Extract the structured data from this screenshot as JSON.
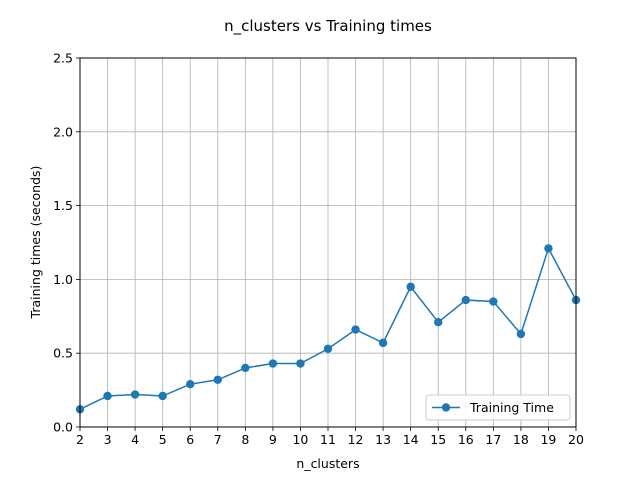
{
  "chart_data": {
    "type": "line",
    "title": "n_clusters vs Training times",
    "xlabel": "n_clusters",
    "ylabel": "Training times (seconds)",
    "xlim": [
      2,
      20
    ],
    "ylim": [
      0,
      2.5
    ],
    "x_ticks": [
      2,
      3,
      4,
      5,
      6,
      7,
      8,
      9,
      10,
      11,
      12,
      13,
      14,
      15,
      16,
      17,
      18,
      19,
      20
    ],
    "y_ticks": [
      "0.0",
      "0.5",
      "1.0",
      "1.5",
      "2.0",
      "2.5"
    ],
    "grid": true,
    "legend_position": "lower-right",
    "series": [
      {
        "name": "Training Time",
        "color": "#1f77b4",
        "marker": "circle",
        "x": [
          2,
          3,
          4,
          5,
          6,
          7,
          8,
          9,
          10,
          11,
          12,
          13,
          14,
          15,
          16,
          17,
          18,
          19,
          20
        ],
        "values": [
          0.12,
          0.21,
          0.22,
          0.21,
          0.29,
          0.32,
          0.4,
          0.43,
          0.43,
          0.53,
          0.66,
          0.57,
          0.95,
          0.71,
          0.86,
          0.85,
          0.63,
          1.21,
          0.86
        ]
      }
    ]
  }
}
